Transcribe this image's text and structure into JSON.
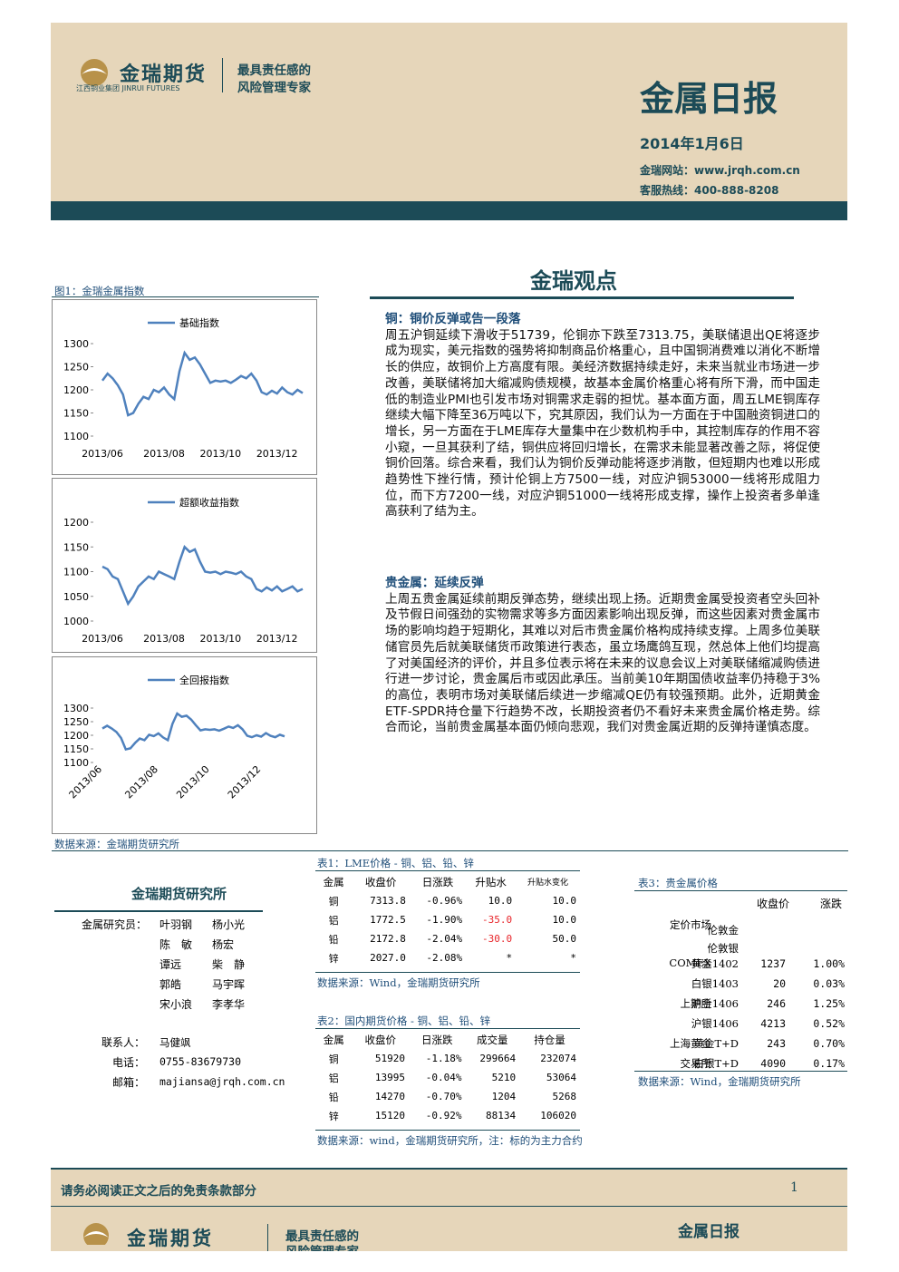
{
  "header": {
    "brand": "金瑞期货",
    "brand_sub": "江西铜业集团 JINRUI FUTURES",
    "slogan_1": "最具责任感的",
    "slogan_2": "风险管理专家",
    "title": "金属日报",
    "date": "2014年1月6日",
    "website": "金瑞网站：www.jrqh.com.cn",
    "hotline": "客服热线：400-888-8208"
  },
  "section_title": "金瑞观点",
  "figure_caption": "图1：金瑞金属指数",
  "figure_source": "数据来源：金瑞期货研究所",
  "chart_data": [
    {
      "type": "line",
      "categories": [
        "2013/06",
        null,
        null,
        null,
        null,
        null,
        null,
        null,
        null,
        null,
        null,
        null,
        "2013/08",
        null,
        null,
        null,
        null,
        null,
        null,
        null,
        null,
        null,
        null,
        "2013/10",
        null,
        null,
        null,
        null,
        null,
        null,
        null,
        null,
        null,
        null,
        "2013/12",
        null,
        null,
        null,
        null,
        null
      ],
      "series": [
        {
          "name": "基础指数",
          "color": "#4f81bd",
          "values": [
            1220,
            1235,
            1225,
            1210,
            1190,
            1145,
            1150,
            1170,
            1185,
            1180,
            1200,
            1195,
            1205,
            1190,
            1180,
            1240,
            1280,
            1265,
            1270,
            1255,
            1235,
            1215,
            1220,
            1218,
            1220,
            1215,
            1222,
            1230,
            1225,
            1235,
            1220,
            1195,
            1190,
            1198,
            1192,
            1205,
            1195,
            1190,
            1200,
            1193
          ]
        }
      ],
      "ylim": [
        1100,
        1300
      ],
      "yticks": [
        1100,
        1150,
        1200,
        1250,
        1300
      ]
    },
    {
      "type": "line",
      "categories": [
        "2013/06",
        null,
        null,
        null,
        null,
        null,
        null,
        null,
        null,
        null,
        null,
        null,
        "2013/08",
        null,
        null,
        null,
        null,
        null,
        null,
        null,
        null,
        null,
        null,
        "2013/10",
        null,
        null,
        null,
        null,
        null,
        null,
        null,
        null,
        null,
        null,
        "2013/12",
        null,
        null,
        null,
        null,
        null
      ],
      "series": [
        {
          "name": "超额收益指数",
          "color": "#4f81bd",
          "values": [
            1110,
            1105,
            1090,
            1085,
            1060,
            1035,
            1050,
            1070,
            1080,
            1090,
            1085,
            1100,
            1095,
            1090,
            1085,
            1120,
            1150,
            1140,
            1145,
            1120,
            1100,
            1098,
            1100,
            1095,
            1100,
            1098,
            1095,
            1100,
            1090,
            1085,
            1065,
            1060,
            1068,
            1062,
            1070,
            1060,
            1065,
            1070,
            1060,
            1065
          ]
        }
      ],
      "ylim": [
        1000,
        1200
      ],
      "yticks": [
        1000,
        1050,
        1100,
        1150,
        1200
      ]
    },
    {
      "type": "line",
      "categories": [
        "2013/06",
        null,
        null,
        null,
        null,
        null,
        null,
        null,
        null,
        null,
        null,
        null,
        "2013/08",
        null,
        null,
        null,
        null,
        null,
        null,
        null,
        null,
        null,
        null,
        "2013/10",
        null,
        null,
        null,
        null,
        null,
        null,
        null,
        null,
        null,
        null,
        "2013/12",
        null,
        null,
        null,
        null,
        null
      ],
      "series": [
        {
          "name": "全回报指数",
          "color": "#4f81bd",
          "values": [
            1225,
            1235,
            1225,
            1212,
            1190,
            1148,
            1152,
            1172,
            1188,
            1182,
            1202,
            1197,
            1207,
            1192,
            1182,
            1242,
            1280,
            1268,
            1272,
            1258,
            1237,
            1218,
            1222,
            1220,
            1222,
            1217,
            1224,
            1232,
            1227,
            1237,
            1222,
            1198,
            1193,
            1200,
            1195,
            1208,
            1198,
            1193,
            1202,
            1196
          ]
        }
      ],
      "ylim": [
        1100,
        1300
      ],
      "yticks": [
        1100,
        1150,
        1200,
        1250,
        1300
      ]
    }
  ],
  "views": [
    {
      "heading": "铜：铜价反弹或告一段落",
      "text": "周五沪铜延续下滑收于51739，伦铜亦下跌至7313.75，美联储退出QE将逐步成为现实，美元指数的强势将抑制商品价格重心，且中国铜消费难以消化不断增长的供应，故铜价上方高度有限。美经济数据持续走好，未来当就业市场进一步改善，美联储将加大缩减购债规模，故基本金属价格重心将有所下滑，而中国走低的制造业PMI也引发市场对铜需求走弱的担忧。基本面方面，周五LME铜库存继续大幅下降至36万吨以下，究其原因，我们认为一方面在于中国融资铜进口的增长，另一方面在于LME库存大量集中在少数机构手中，其控制库存的作用不容小窥，一旦其获利了结，铜供应将回归增长，在需求未能显著改善之际，将促使铜价回落。综合来看，我们认为铜价反弹动能将逐步消散，但短期内也难以形成趋势性下挫行情，预计伦铜上方7500一线，对应沪铜53000一线将形成阻力位，而下方7200一线，对应沪铜51000一线将形成支撑，操作上投资者多单逢高获利了结为主。"
    },
    {
      "heading": "贵金属：延续反弹",
      "text": "上周五贵金属延续前期反弹态势，继续出现上扬。近期贵金属受投资者空头回补及节假日间强劲的实物需求等多方面因素影响出现反弹，而这些因素对贵金属市场的影响均趋于短期化，其难以对后市贵金属价格构成持续支撑。上周多位美联储官员先后就美联储货币政策进行表态，虽立场鹰鸽互现，然总体上他们均提高了对美国经济的评价，并且多位表示将在未来的议息会议上对美联储缩减购债进行进一步讨论，贵金属后市或因此承压。当前美10年期国债收益率仍持稳于3%的高位，表明市场对美联储后续进一步缩减QE仍有较强预期。此外，近期黄金ETF-SPDR持仓量下行趋势不改，长期投资者仍不看好未来贵金属价格走势。综合而论，当前贵金属基本面仍倾向悲观，我们对贵金属近期的反弹持谨慎态度。"
    }
  ],
  "institute": {
    "title": "金瑞期货研究所",
    "role": "金属研究员：",
    "members": [
      [
        "叶羽钢",
        "杨小光"
      ],
      [
        "陈　敏",
        "杨宏"
      ],
      [
        "谭远",
        "柴　静"
      ],
      [
        "郭皓",
        "马宇晖"
      ],
      [
        "宋小浪",
        "李孝华"
      ]
    ],
    "contacts": [
      [
        "联系人：",
        "马健飒"
      ],
      [
        "电话：",
        "0755-83679730"
      ],
      [
        "邮箱：",
        "majiansa@jrqh.com.cn"
      ]
    ]
  },
  "table1": {
    "title": "表1：LME价格 - 铜、铝、铅、锌",
    "header": [
      "金属",
      "收盘价",
      "日涨跌",
      "升贴水",
      "升贴水变化"
    ],
    "rows": [
      [
        "铜",
        "7313.8",
        "-0.96%",
        "10.0",
        "10.0"
      ],
      [
        "铝",
        "1772.5",
        "-1.90%",
        "-35.0",
        "10.0"
      ],
      [
        "铅",
        "2172.8",
        "-2.04%",
        "-30.0",
        "50.0"
      ],
      [
        "锌",
        "2027.0",
        "-2.08%",
        "*",
        "*"
      ]
    ],
    "source": "数据来源：Wind，金瑞期货研究所"
  },
  "table2": {
    "title": "表2：国内期货价格 - 铜、铝、铅、锌",
    "header": [
      "金属",
      "收盘价",
      "日涨跌",
      "成交量",
      "持仓量"
    ],
    "rows": [
      [
        "铜",
        "51920",
        "-1.18%",
        "299664",
        "232074"
      ],
      [
        "铝",
        "13995",
        "-0.04%",
        "5210",
        "53064"
      ],
      [
        "铅",
        "14270",
        "-0.70%",
        "1204",
        "5268"
      ],
      [
        "锌",
        "15120",
        "-0.92%",
        "88134",
        "106020"
      ]
    ],
    "source": "数据来源：wind，金瑞期货研究所，注：标的为主力合约"
  },
  "table3": {
    "title": "表3：贵金属价格",
    "header": [
      "收盘价",
      "涨跌"
    ],
    "rows": [
      {
        "market": "定价市场",
        "product": "伦敦金"
      },
      {
        "product": "伦敦银"
      },
      {
        "market": "COMEX",
        "product": "黄金1402",
        "close": "1237",
        "change": "1.00%"
      },
      {
        "product": "白银1403",
        "close": "20",
        "change": "0.03%"
      },
      {
        "market": "上期所",
        "product": "沪金1406",
        "close": "246",
        "change": "1.25%"
      },
      {
        "product": "沪银1406",
        "close": "4213",
        "change": "0.52%"
      },
      {
        "market": "上海黄金",
        "product": "黄金T+D",
        "close": "243",
        "change": "0.70%"
      },
      {
        "market": "交易所",
        "product": "白银T+D",
        "close": "4090",
        "change": "0.17%"
      }
    ],
    "source": "数据来源：Wind，金瑞期货研究所"
  },
  "footer": {
    "disclaimer": "请务必阅读正文之后的免责条款部分",
    "page": "1",
    "brand": "金瑞期货",
    "slogan_1": "最具责任感的",
    "slogan_2": "风险管理专家",
    "title": "金属日报"
  }
}
